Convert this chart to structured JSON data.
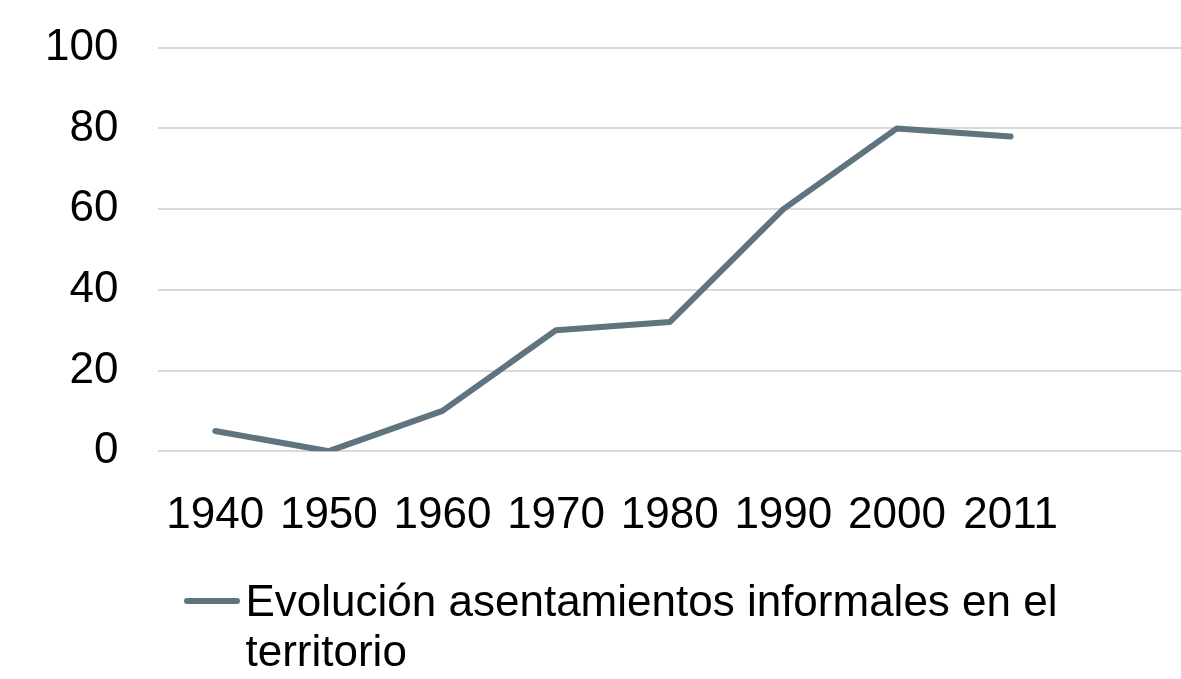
{
  "chart_data": {
    "type": "line",
    "categories": [
      "1940",
      "1950",
      "1960",
      "1970",
      "1980",
      "1990",
      "2000",
      "2011",
      null
    ],
    "series": [
      {
        "name": "Evolución asentamientos informales en el territorio",
        "color": "#607480",
        "values": [
          5,
          0,
          10,
          30,
          32,
          60,
          80,
          78,
          null
        ]
      }
    ],
    "ylim": [
      0,
      100
    ],
    "yticks": [
      0,
      20,
      40,
      60,
      80,
      100
    ],
    "grid": "y",
    "legend": "bottom",
    "marker": "none"
  }
}
